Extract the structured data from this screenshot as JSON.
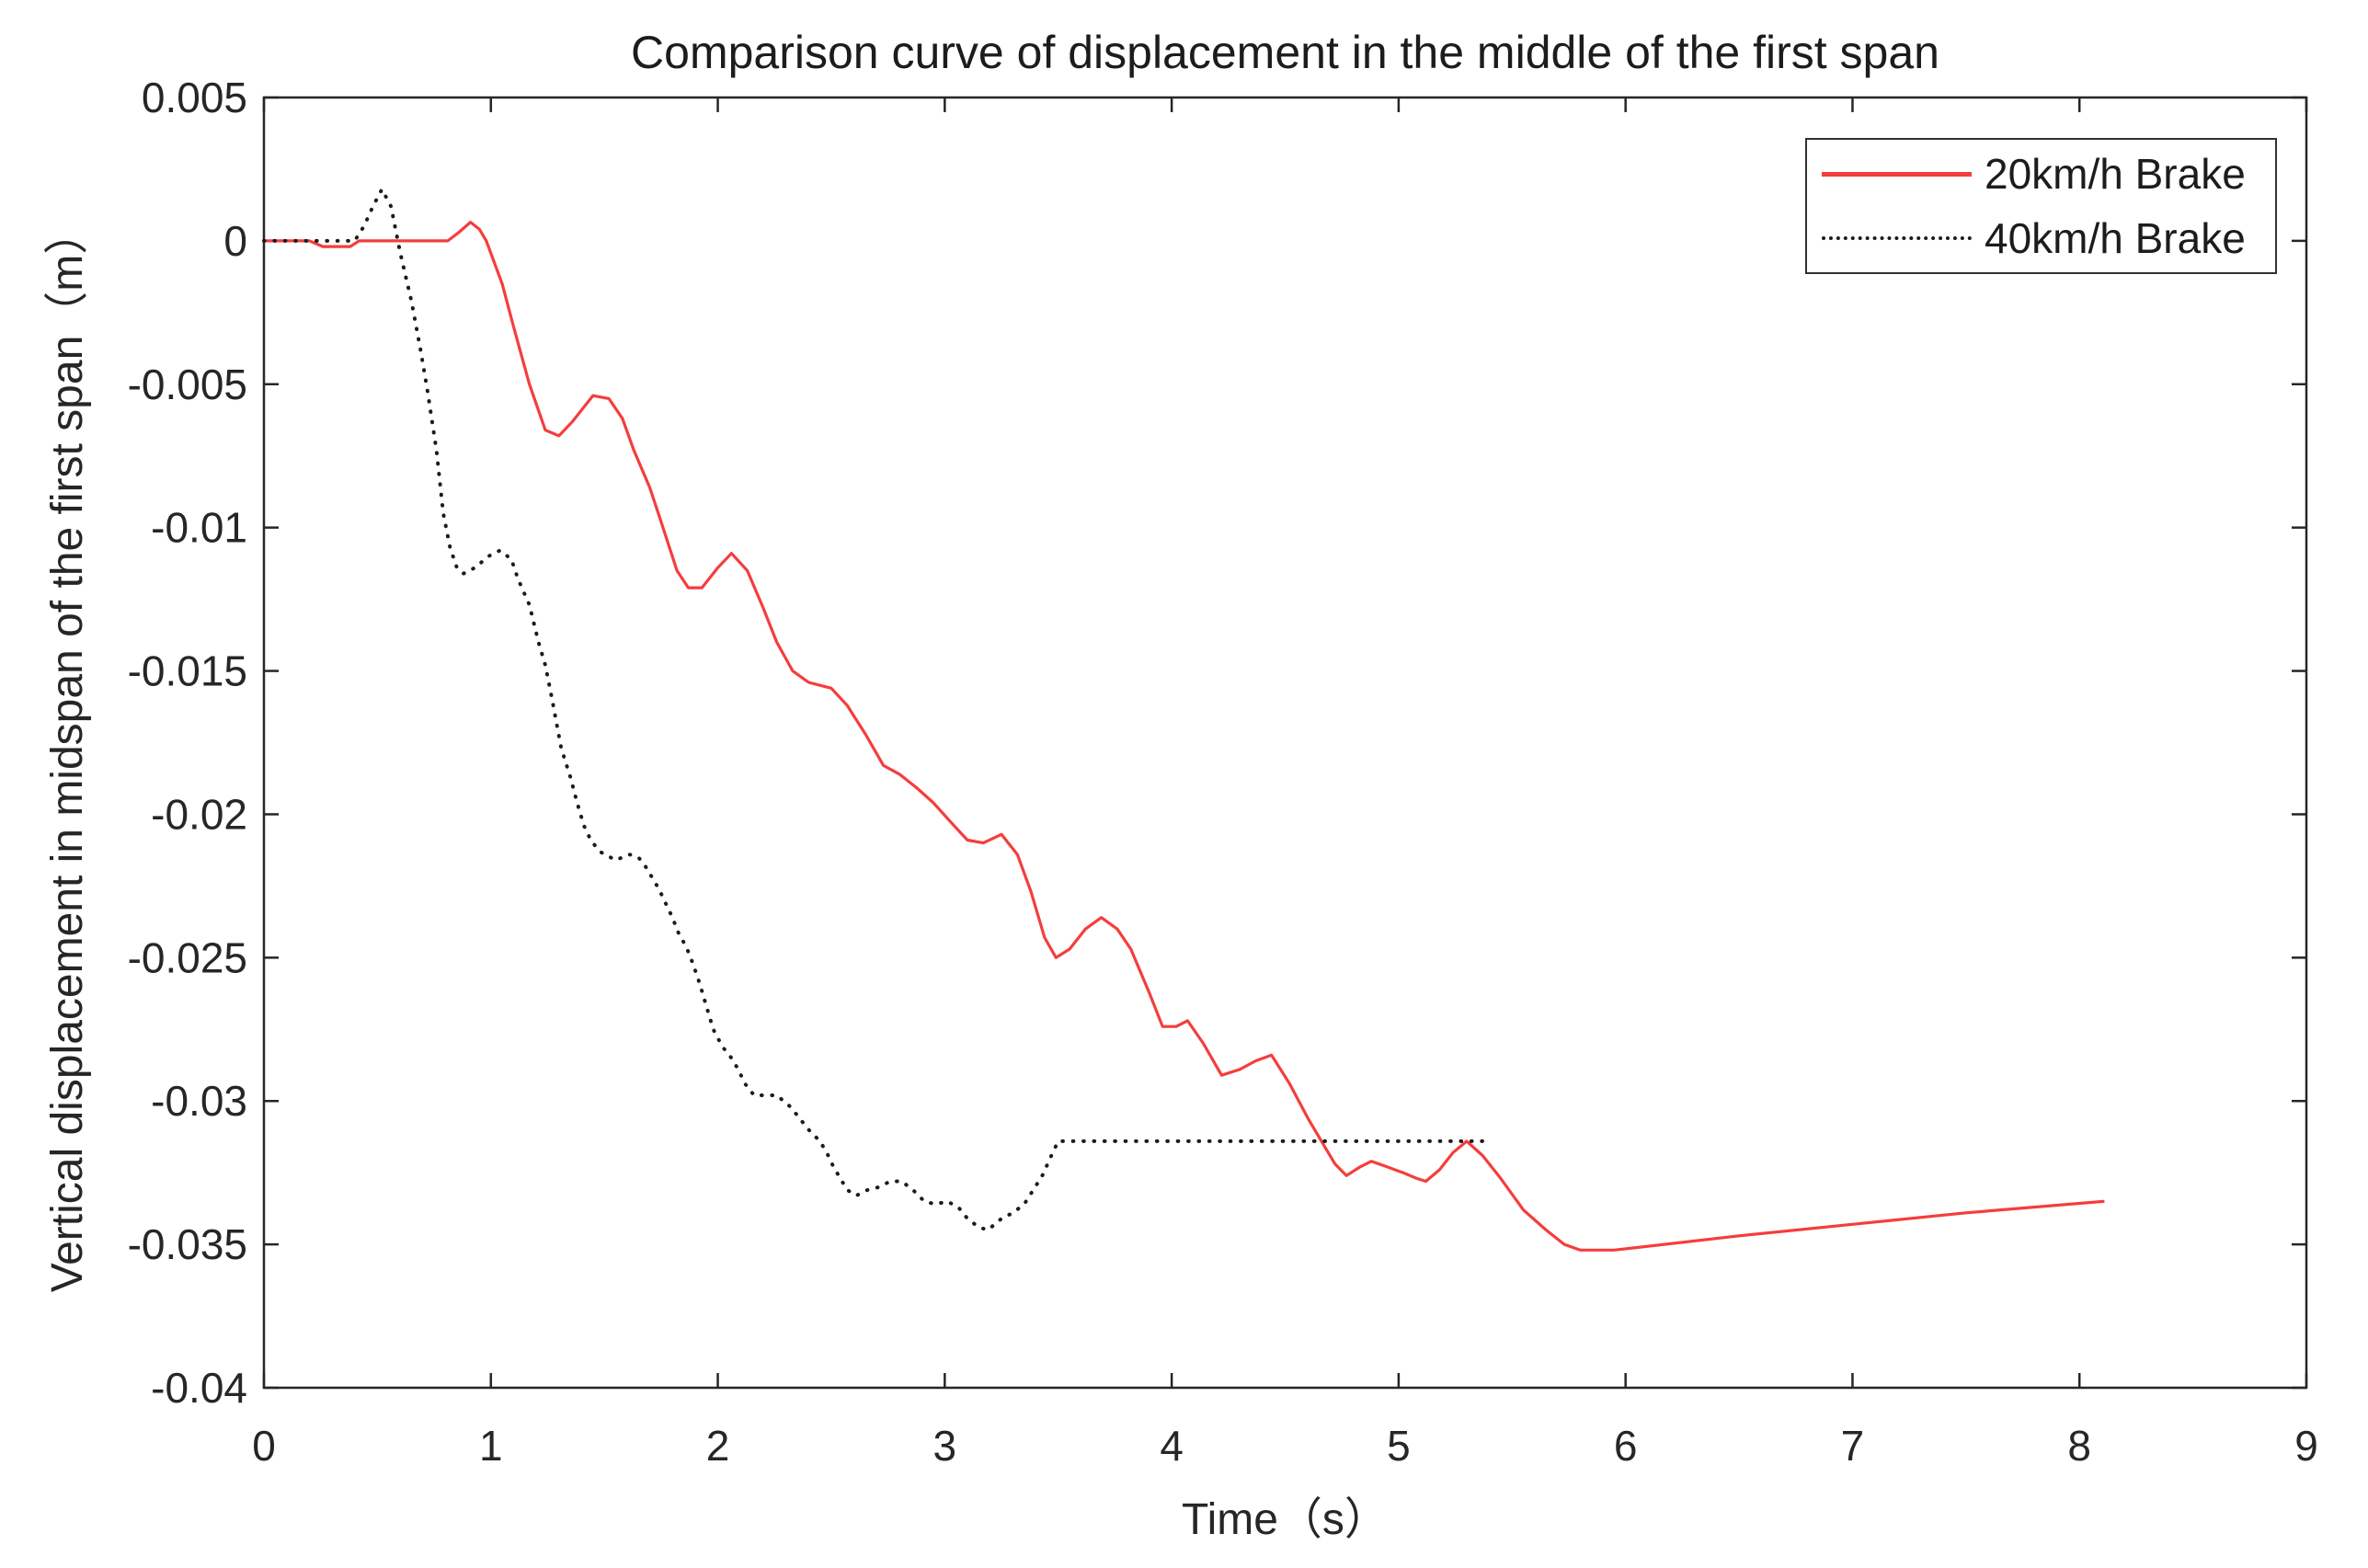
{
  "colors": {
    "background": "#ffffff",
    "axis": "#262626",
    "tick_label": "#262626",
    "series_red": "#f53d3d",
    "series_black": "#1c1c1c"
  },
  "chart_data": {
    "type": "line",
    "title": "Comparison curve of displacement in the middle of the first span",
    "xlabel": "Time（s）",
    "ylabel": "Vertical displacement in midspan of the first span（m）",
    "xlim": [
      0,
      9
    ],
    "ylim": [
      -0.04,
      0.005
    ],
    "xticks": [
      0,
      1,
      2,
      3,
      4,
      5,
      6,
      7,
      8,
      9
    ],
    "xtick_labels": [
      "0",
      "1",
      "2",
      "3",
      "4",
      "5",
      "6",
      "7",
      "8",
      "9"
    ],
    "yticks": [
      0.005,
      0,
      -0.005,
      -0.01,
      -0.015,
      -0.02,
      -0.025,
      -0.03,
      -0.035,
      -0.04
    ],
    "ytick_labels": [
      "0.005",
      "0",
      "-0.005",
      "-0.01",
      "-0.015",
      "-0.02",
      "-0.025",
      "-0.03",
      "-0.035",
      "-0.04"
    ],
    "grid": false,
    "box": true,
    "tick_direction": "in",
    "legend_position": "top-right",
    "series": [
      {
        "name": "20km/h Brake",
        "color": "#f53d3d",
        "style": "solid",
        "points": [
          [
            0,
            0
          ],
          [
            0.2,
            0
          ],
          [
            0.26,
            -0.0002
          ],
          [
            0.38,
            -0.0002
          ],
          [
            0.42,
            0
          ],
          [
            0.81,
            0
          ],
          [
            0.86,
            0.0003
          ],
          [
            0.91,
            0.00065
          ],
          [
            0.95,
            0.0004
          ],
          [
            0.98,
            0
          ],
          [
            1.05,
            -0.0015
          ],
          [
            1.1,
            -0.003
          ],
          [
            1.17,
            -0.005
          ],
          [
            1.24,
            -0.0066
          ],
          [
            1.3,
            -0.0068
          ],
          [
            1.36,
            -0.0063
          ],
          [
            1.45,
            -0.0054
          ],
          [
            1.52,
            -0.0055
          ],
          [
            1.58,
            -0.0062
          ],
          [
            1.63,
            -0.0073
          ],
          [
            1.7,
            -0.0086
          ],
          [
            1.75,
            -0.0098
          ],
          [
            1.82,
            -0.0115
          ],
          [
            1.87,
            -0.0121
          ],
          [
            1.93,
            -0.0121
          ],
          [
            2.0,
            -0.0114
          ],
          [
            2.06,
            -0.0109
          ],
          [
            2.13,
            -0.0115
          ],
          [
            2.2,
            -0.0128
          ],
          [
            2.26,
            -0.014
          ],
          [
            2.33,
            -0.015
          ],
          [
            2.4,
            -0.0154
          ],
          [
            2.5,
            -0.0156
          ],
          [
            2.57,
            -0.0162
          ],
          [
            2.65,
            -0.0172
          ],
          [
            2.73,
            -0.0183
          ],
          [
            2.8,
            -0.0186
          ],
          [
            2.88,
            -0.0191
          ],
          [
            2.95,
            -0.0196
          ],
          [
            3.03,
            -0.0203
          ],
          [
            3.1,
            -0.0209
          ],
          [
            3.17,
            -0.021
          ],
          [
            3.25,
            -0.0207
          ],
          [
            3.32,
            -0.0214
          ],
          [
            3.38,
            -0.0227
          ],
          [
            3.44,
            -0.0243
          ],
          [
            3.49,
            -0.025
          ],
          [
            3.55,
            -0.0247
          ],
          [
            3.62,
            -0.024
          ],
          [
            3.69,
            -0.0236
          ],
          [
            3.76,
            -0.024
          ],
          [
            3.82,
            -0.0247
          ],
          [
            3.9,
            -0.0262
          ],
          [
            3.96,
            -0.0274
          ],
          [
            4.02,
            -0.0274
          ],
          [
            4.07,
            -0.0272
          ],
          [
            4.14,
            -0.028
          ],
          [
            4.22,
            -0.0291
          ],
          [
            4.3,
            -0.0289
          ],
          [
            4.37,
            -0.0286
          ],
          [
            4.44,
            -0.0284
          ],
          [
            4.52,
            -0.0294
          ],
          [
            4.6,
            -0.0306
          ],
          [
            4.66,
            -0.0314
          ],
          [
            4.72,
            -0.0322
          ],
          [
            4.77,
            -0.0326
          ],
          [
            4.83,
            -0.0323
          ],
          [
            4.88,
            -0.0321
          ],
          [
            4.95,
            -0.0323
          ],
          [
            5.02,
            -0.0325
          ],
          [
            5.08,
            -0.0327
          ],
          [
            5.12,
            -0.0328
          ],
          [
            5.18,
            -0.0324
          ],
          [
            5.24,
            -0.0318
          ],
          [
            5.3,
            -0.0314
          ],
          [
            5.37,
            -0.0319
          ],
          [
            5.45,
            -0.0327
          ],
          [
            5.55,
            -0.0338
          ],
          [
            5.65,
            -0.0345
          ],
          [
            5.73,
            -0.035
          ],
          [
            5.8,
            -0.0352
          ],
          [
            5.95,
            -0.0352
          ],
          [
            6.5,
            -0.0347
          ],
          [
            7.0,
            -0.0343
          ],
          [
            7.5,
            -0.0339
          ],
          [
            8.11,
            -0.0335
          ]
        ]
      },
      {
        "name": "40km/h Brake",
        "color": "#1c1c1c",
        "style": "dotted",
        "points": [
          [
            0,
            0
          ],
          [
            0.4,
            0
          ],
          [
            0.44,
            0.0005
          ],
          [
            0.48,
            0.0012
          ],
          [
            0.52,
            0.0018
          ],
          [
            0.56,
            0.0012
          ],
          [
            0.6,
            -0.0004
          ],
          [
            0.65,
            -0.0021
          ],
          [
            0.69,
            -0.0038
          ],
          [
            0.72,
            -0.0052
          ],
          [
            0.76,
            -0.0073
          ],
          [
            0.79,
            -0.0095
          ],
          [
            0.82,
            -0.0107
          ],
          [
            0.85,
            -0.0114
          ],
          [
            0.88,
            -0.0116
          ],
          [
            0.93,
            -0.0114
          ],
          [
            0.99,
            -0.011
          ],
          [
            1.04,
            -0.0108
          ],
          [
            1.09,
            -0.0111
          ],
          [
            1.12,
            -0.0118
          ],
          [
            1.17,
            -0.0127
          ],
          [
            1.21,
            -0.014
          ],
          [
            1.24,
            -0.0148
          ],
          [
            1.27,
            -0.016
          ],
          [
            1.31,
            -0.0177
          ],
          [
            1.35,
            -0.0187
          ],
          [
            1.38,
            -0.0196
          ],
          [
            1.41,
            -0.0204
          ],
          [
            1.44,
            -0.0209
          ],
          [
            1.48,
            -0.0213
          ],
          [
            1.55,
            -0.0216
          ],
          [
            1.61,
            -0.0214
          ],
          [
            1.65,
            -0.0215
          ],
          [
            1.68,
            -0.0218
          ],
          [
            1.71,
            -0.0222
          ],
          [
            1.74,
            -0.0226
          ],
          [
            1.77,
            -0.0231
          ],
          [
            1.8,
            -0.0236
          ],
          [
            1.83,
            -0.0242
          ],
          [
            1.86,
            -0.0246
          ],
          [
            1.89,
            -0.0252
          ],
          [
            1.92,
            -0.0259
          ],
          [
            1.95,
            -0.0267
          ],
          [
            1.98,
            -0.0275
          ],
          [
            2.02,
            -0.0281
          ],
          [
            2.06,
            -0.0285
          ],
          [
            2.09,
            -0.0289
          ],
          [
            2.12,
            -0.0294
          ],
          [
            2.16,
            -0.0298
          ],
          [
            2.26,
            -0.0298
          ],
          [
            2.32,
            -0.0302
          ],
          [
            2.36,
            -0.0306
          ],
          [
            2.4,
            -0.031
          ],
          [
            2.45,
            -0.0314
          ],
          [
            2.48,
            -0.0318
          ],
          [
            2.51,
            -0.0323
          ],
          [
            2.54,
            -0.0327
          ],
          [
            2.57,
            -0.0331
          ],
          [
            2.61,
            -0.0333
          ],
          [
            2.66,
            -0.0331
          ],
          [
            2.71,
            -0.033
          ],
          [
            2.76,
            -0.0328
          ],
          [
            2.81,
            -0.0328
          ],
          [
            2.86,
            -0.0331
          ],
          [
            2.91,
            -0.0335
          ],
          [
            2.96,
            -0.0336
          ],
          [
            3.01,
            -0.0335
          ],
          [
            3.06,
            -0.0337
          ],
          [
            3.1,
            -0.0341
          ],
          [
            3.15,
            -0.0344
          ],
          [
            3.19,
            -0.0345
          ],
          [
            3.25,
            -0.0341
          ],
          [
            3.3,
            -0.0339
          ],
          [
            3.35,
            -0.0336
          ],
          [
            3.39,
            -0.0331
          ],
          [
            3.43,
            -0.0326
          ],
          [
            3.47,
            -0.0319
          ],
          [
            3.5,
            -0.0314
          ],
          [
            5.4,
            -0.0314
          ]
        ]
      }
    ]
  }
}
